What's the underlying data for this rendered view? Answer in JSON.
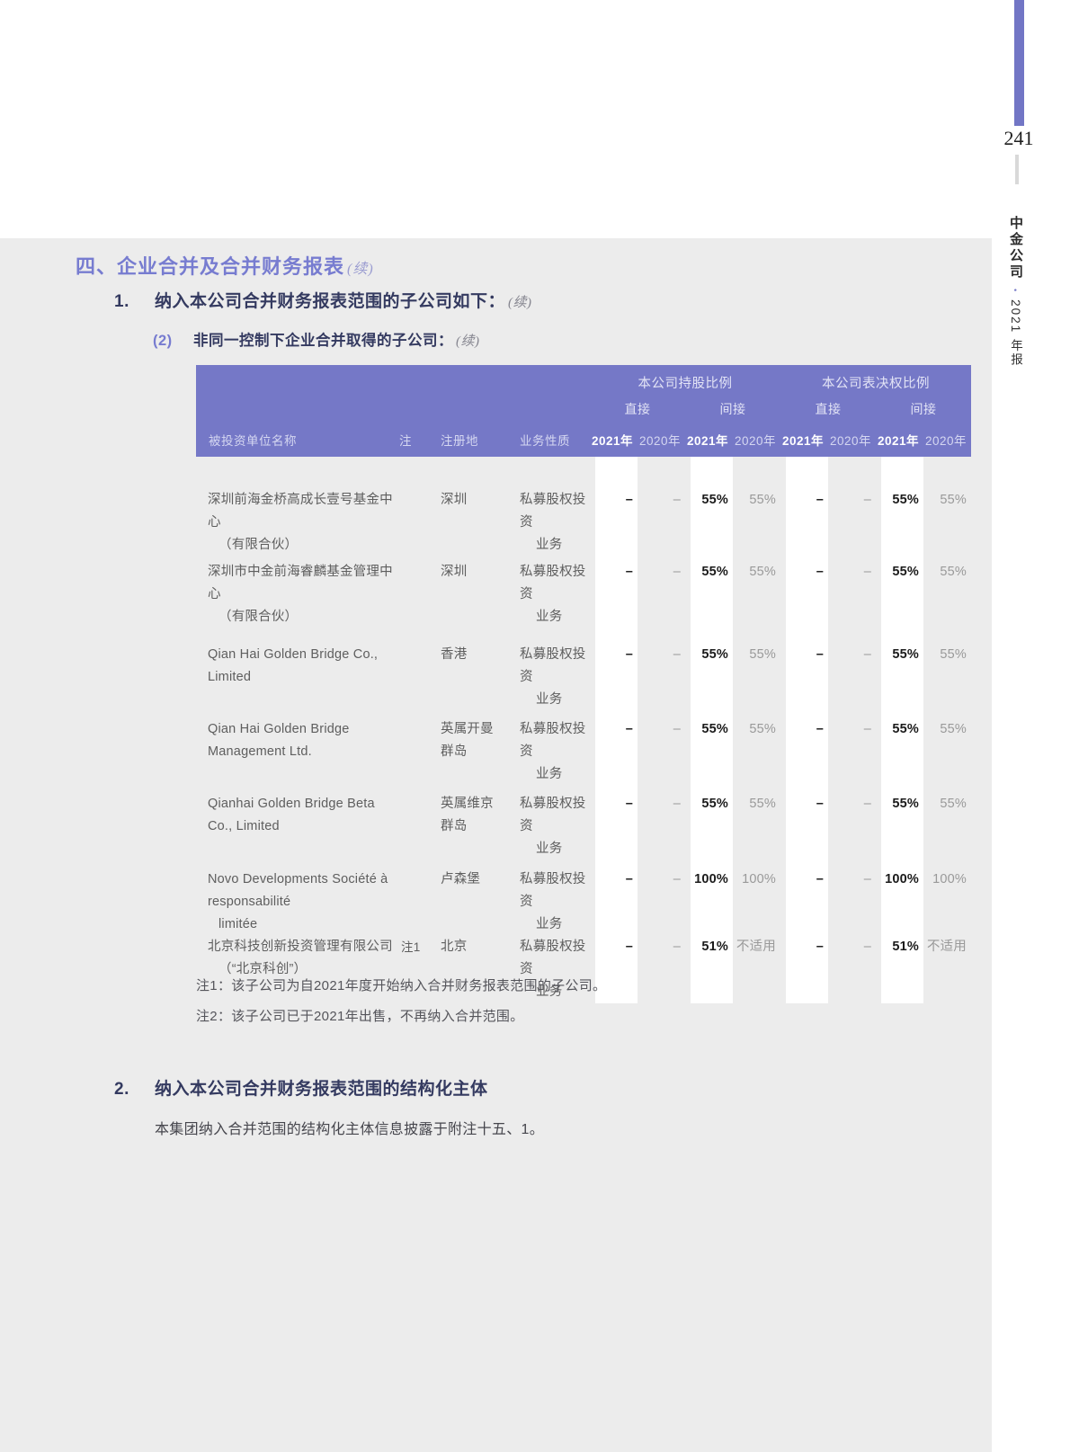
{
  "colors": {
    "accent_purple": "#7578C7",
    "heading_purple": "#777CD0",
    "dark_heading": "#343A60",
    "content_gray": "#ECECEC"
  },
  "page": {
    "number": "241",
    "right_margin_brand": "中金公司",
    "right_margin_separator": "•",
    "right_margin_year": "2021 年报"
  },
  "headings": {
    "section_title": "四、企业合并及合并财务报表",
    "section_title_cont": "(续)",
    "item1_num": "1.",
    "item1_title": "纳入本公司合并财务报表范围的子公司如下：",
    "item1_cont": "(续)",
    "item2_num": "(2)",
    "item2_title": "非同一控制下企业合并取得的子公司：",
    "item2_cont": "(续)"
  },
  "table": {
    "group_shareholding": "本公司持股比例",
    "group_voting": "本公司表决权比例",
    "sub_direct": "直接",
    "sub_indirect": "间接",
    "col_name": "被投资单位名称",
    "col_note": "注",
    "col_location": "注册地",
    "col_business": "业务性质",
    "year_2021": "2021年",
    "year_2020": "2020年",
    "rows": [
      {
        "name1": "深圳前海金桥高成长壹号基金中心",
        "name2": "（有限合伙）",
        "note": "",
        "loc": "深圳",
        "biz1": "私募股权投资",
        "biz2": "业务",
        "v": [
          "–",
          "–",
          "55%",
          "55%",
          "–",
          "–",
          "55%",
          "55%"
        ]
      },
      {
        "name1": "深圳市中金前海睿麟基金管理中心",
        "name2": "（有限合伙）",
        "note": "",
        "loc": "深圳",
        "biz1": "私募股权投资",
        "biz2": "业务",
        "v": [
          "–",
          "–",
          "55%",
          "55%",
          "–",
          "–",
          "55%",
          "55%"
        ]
      },
      {
        "name1": "Qian Hai Golden Bridge Co., Limited",
        "name2": "",
        "note": "",
        "loc": "香港",
        "biz1": "私募股权投资",
        "biz2": "业务",
        "v": [
          "–",
          "–",
          "55%",
          "55%",
          "–",
          "–",
          "55%",
          "55%"
        ]
      },
      {
        "name1": "Qian Hai Golden Bridge Management Ltd.",
        "name2": "",
        "note": "",
        "loc": "英属开曼群岛",
        "biz1": "私募股权投资",
        "biz2": "业务",
        "v": [
          "–",
          "–",
          "55%",
          "55%",
          "–",
          "–",
          "55%",
          "55%"
        ]
      },
      {
        "name1": "Qianhai Golden Bridge Beta Co., Limited",
        "name2": "",
        "note": "",
        "loc": "英属维京群岛",
        "biz1": "私募股权投资",
        "biz2": "业务",
        "v": [
          "–",
          "–",
          "55%",
          "55%",
          "–",
          "–",
          "55%",
          "55%"
        ]
      },
      {
        "name1": "Novo Developments Société à responsabilité",
        "name2": "limitée",
        "note": "",
        "loc": "卢森堡",
        "biz1": "私募股权投资",
        "biz2": "业务",
        "v": [
          "–",
          "–",
          "100%",
          "100%",
          "–",
          "–",
          "100%",
          "100%"
        ]
      },
      {
        "name1": "北京科技创新投资管理有限公司",
        "name2": "（“北京科创”）",
        "note": "注1",
        "loc": "北京",
        "biz1": "私募股权投资",
        "biz2": "业务",
        "v": [
          "–",
          "–",
          "51%",
          "不适用",
          "–",
          "–",
          "51%",
          "不适用"
        ]
      }
    ]
  },
  "notes": {
    "note1": "注1：该子公司为自2021年度开始纳入合并财务报表范围的子公司。",
    "note2": "注2：该子公司已于2021年出售，不再纳入合并范围。"
  },
  "section2": {
    "num": "2.",
    "title": "纳入本公司合并财务报表范围的结构化主体",
    "body": "本集团纳入合并范围的结构化主体信息披露于附注十五、1。"
  }
}
